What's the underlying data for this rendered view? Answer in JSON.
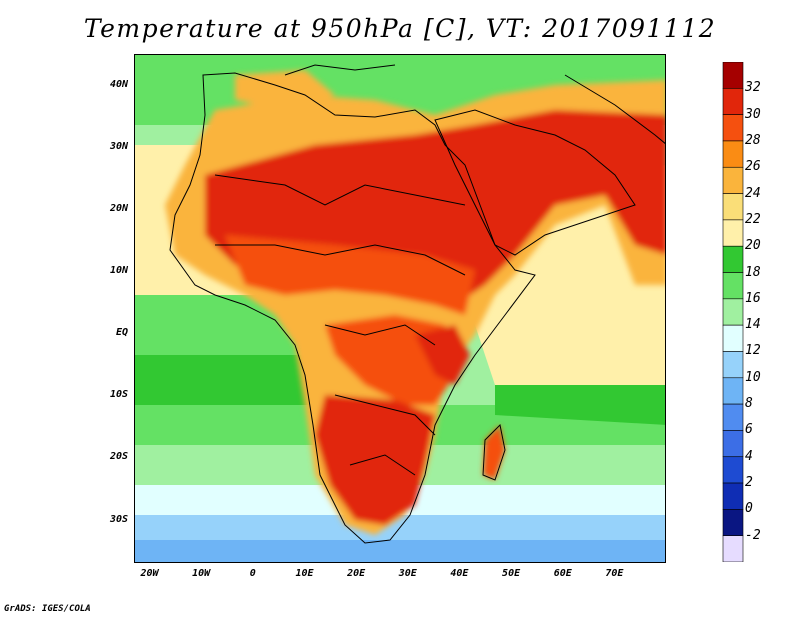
{
  "title": "Temperature at 950hPa [C], VT: 2017091112",
  "footer": "GrADS: IGES/COLA",
  "map": {
    "projection": "lat-lon",
    "lon_range": [
      -23,
      80
    ],
    "lat_range": [
      -37,
      45
    ],
    "lat_labels": [
      "40N",
      "30N",
      "20N",
      "10N",
      "EQ",
      "10S",
      "20S",
      "30S"
    ],
    "lat_values": [
      40,
      30,
      20,
      10,
      0,
      -10,
      -20,
      -30
    ],
    "lon_labels": [
      "20W",
      "10W",
      "0",
      "10E",
      "20E",
      "30E",
      "40E",
      "50E",
      "60E",
      "70E"
    ],
    "lon_values": [
      -20,
      -10,
      0,
      10,
      20,
      30,
      40,
      50,
      60,
      70
    ]
  },
  "colorbar": {
    "labels": [
      "32",
      "30",
      "28",
      "26",
      "24",
      "22",
      "20",
      "18",
      "16",
      "14",
      "12",
      "10",
      "8",
      "6",
      "4",
      "2",
      "0",
      "-2"
    ],
    "colors": [
      "#a50000",
      "#e1260b",
      "#f5500f",
      "#fa8c14",
      "#fab43c",
      "#fade78",
      "#fff0aa",
      "#32c832",
      "#64e164",
      "#a0f0a0",
      "#e1ffff",
      "#96d2fa",
      "#6eb4f5",
      "#508cf0",
      "#3c6ee6",
      "#1e4bd2",
      "#0f2db4",
      "#0a1682",
      "#e6dcff"
    ]
  }
}
